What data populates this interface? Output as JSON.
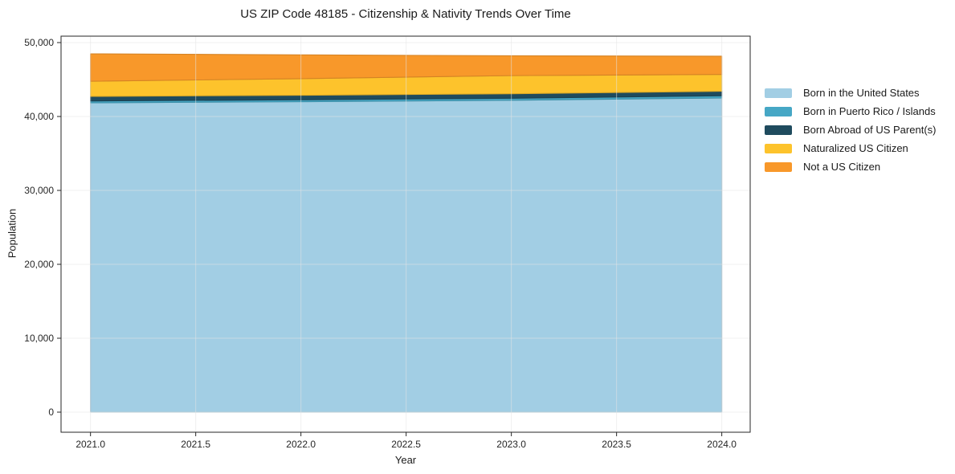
{
  "figure": {
    "title": "US ZIP Code 48185 - Citizenship & Nativity Trends Over Time"
  },
  "chart_data": {
    "type": "area",
    "stacked": true,
    "title": "US ZIP Code 48185 - Citizenship & Nativity Trends Over Time",
    "xlabel": "Year",
    "ylabel": "Population",
    "x": [
      2021,
      2022,
      2023,
      2024
    ],
    "series": [
      {
        "name": "Born in the United States",
        "color": "#A2CEE4",
        "values": [
          41850,
          42000,
          42200,
          42500
        ]
      },
      {
        "name": "Born in Puerto Rico / Islands",
        "color": "#46A7C5",
        "values": [
          250,
          260,
          270,
          300
        ]
      },
      {
        "name": "Born Abroad of US Parent(s)",
        "color": "#1F4B5E",
        "values": [
          620,
          610,
          610,
          620
        ]
      },
      {
        "name": "Naturalized US Citizen",
        "color": "#FDC32C",
        "values": [
          2050,
          2250,
          2450,
          2270
        ]
      },
      {
        "name": "Not a US Citizen",
        "color": "#F8982A",
        "values": [
          3710,
          3220,
          2680,
          2470
        ]
      }
    ],
    "totals": [
      48480,
      48340,
      48210,
      48160
    ],
    "xlim": [
      2020.86,
      2024.135
    ],
    "ylim": [
      -2717,
      50870
    ],
    "xticks": {
      "values": [
        2021.0,
        2021.5,
        2022.0,
        2022.5,
        2023.0,
        2023.5,
        2024.0
      ],
      "labels": [
        "2021.0",
        "2021.5",
        "2022.0",
        "2022.5",
        "2023.0",
        "2023.5",
        "2024.0"
      ]
    },
    "yticks": {
      "values": [
        0,
        10000,
        20000,
        30000,
        40000,
        50000
      ],
      "labels": [
        "0",
        "10,000",
        "20,000",
        "30,000",
        "40,000",
        "50,000"
      ]
    },
    "grid": true,
    "grid_color": "#e4e4e4",
    "spine_color": "#262626",
    "legend_position": "outside-right"
  }
}
